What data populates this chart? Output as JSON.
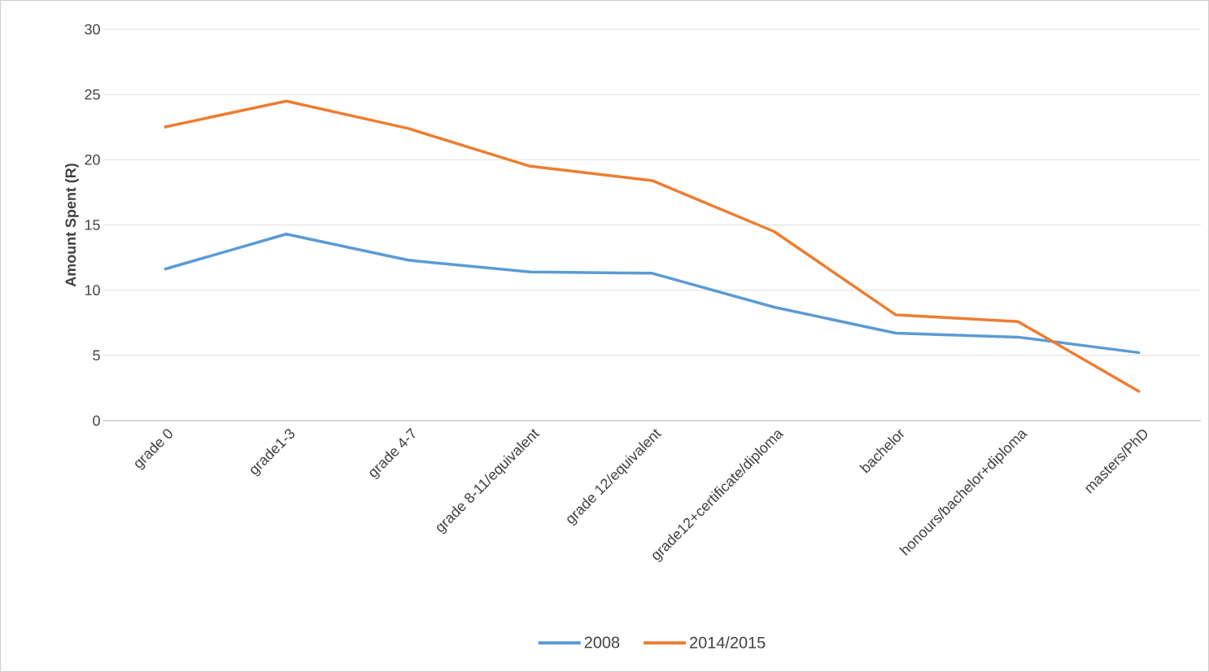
{
  "chart_data": {
    "type": "line",
    "ylabel": "Amount Spent (R)",
    "categories": [
      "grade 0",
      "grade1-3",
      "grade 4-7",
      "grade 8-11/equivalent",
      "grade 12/equivalent",
      "grade12+certificate/diploma",
      "bachelor",
      "honours/bachelor+diploma",
      "masters/PhD"
    ],
    "series": [
      {
        "name": "2008",
        "color": "#5b9bd5",
        "values": [
          11.6,
          14.3,
          12.3,
          11.4,
          11.3,
          8.7,
          6.7,
          6.4,
          5.2
        ]
      },
      {
        "name": "2014/2015",
        "color": "#ed7d31",
        "values": [
          22.5,
          24.5,
          22.4,
          19.5,
          18.4,
          14.5,
          8.1,
          7.6,
          2.2
        ]
      }
    ],
    "ylim": [
      0,
      30
    ],
    "yticks": [
      0,
      5,
      10,
      15,
      20,
      25,
      30
    ],
    "grid": "y",
    "legend": "bottom",
    "marker": "none",
    "line_style": "solid"
  }
}
